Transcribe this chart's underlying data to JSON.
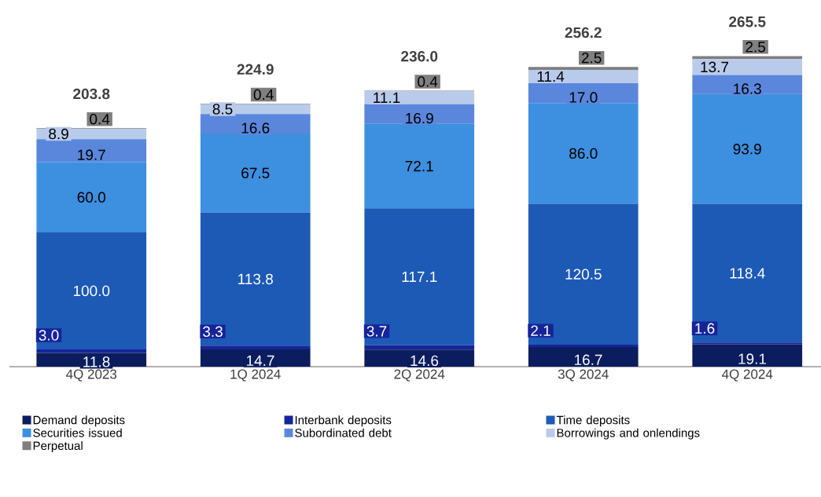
{
  "chart_data": {
    "type": "bar",
    "stacked": true,
    "legend": "bottom",
    "categories": [
      "4Q 2023",
      "1Q 2024",
      "2Q 2024",
      "3Q 2024",
      "4Q 2024"
    ],
    "series": [
      {
        "name": "Demand deposits",
        "color": "#0b1d5e",
        "values": [
          11.8,
          14.7,
          14.6,
          16.7,
          19.1
        ],
        "value_labels": [
          "11.8",
          "14.7",
          "14.6",
          "16.7",
          "19.1"
        ]
      },
      {
        "name": "Interbank deposits",
        "color": "#16249a",
        "values": [
          3.0,
          3.3,
          3.7,
          2.1,
          1.6
        ],
        "value_labels": [
          "3.0",
          "3.3",
          "3.7",
          "2.1",
          "1.6"
        ]
      },
      {
        "name": "Time deposits",
        "color": "#1d5ab5",
        "values": [
          100.0,
          113.8,
          117.1,
          120.5,
          118.4
        ],
        "value_labels": [
          "100.0",
          "113.8",
          "117.1",
          "120.5",
          "118.4"
        ]
      },
      {
        "name": "Securities issued",
        "color": "#3d8fe0",
        "values": [
          60.0,
          67.5,
          72.1,
          86.0,
          93.9
        ],
        "value_labels": [
          "60.0",
          "67.5",
          "72.1",
          "86.0",
          "93.9"
        ]
      },
      {
        "name": "Subordinated debt",
        "color": "#5a87dc",
        "values": [
          19.7,
          16.6,
          16.9,
          17.0,
          16.3
        ],
        "value_labels": [
          "19.7",
          "16.6",
          "16.9",
          "17.0",
          "16.3"
        ]
      },
      {
        "name": "Borrowings and onlendings",
        "color": "#b9cbea",
        "values": [
          8.9,
          8.5,
          11.1,
          11.4,
          13.7
        ],
        "value_labels": [
          "8.9",
          "8.5",
          "11.1",
          "11.4",
          "13.7"
        ]
      },
      {
        "name": "Perpetual",
        "color": "#7f7f7f",
        "values": [
          0.4,
          0.4,
          0.4,
          2.5,
          2.5
        ],
        "value_labels": [
          "0.4",
          "0.4",
          "0.4",
          "2.5",
          "2.5"
        ]
      }
    ],
    "totals": [
      "203.8",
      "224.9",
      "236.0",
      "256.2",
      "265.5"
    ]
  }
}
